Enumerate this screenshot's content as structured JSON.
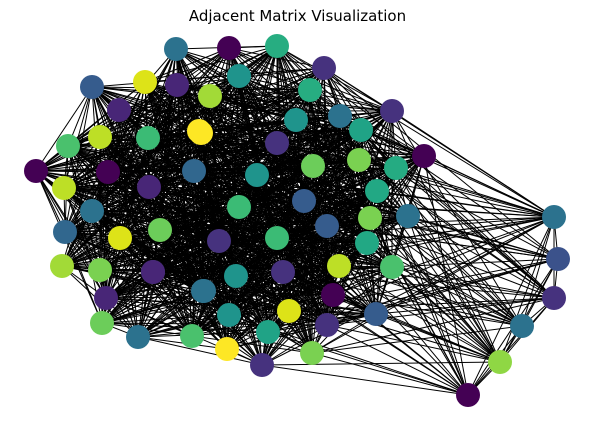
{
  "figure": {
    "title": "Adjacent Matrix Visualization"
  },
  "graph": {
    "edge_color": "#000000",
    "colormap": "viridis",
    "nodes": [
      {
        "color": "#2c728e"
      },
      {
        "color": "#440154"
      },
      {
        "color": "#27ad81"
      },
      {
        "color": "#46327e"
      },
      {
        "color": "#365c8d"
      },
      {
        "color": "#dde318"
      },
      {
        "color": "#482677"
      },
      {
        "color": "#1f948c"
      },
      {
        "color": "#482677"
      },
      {
        "color": "#a2da37"
      },
      {
        "color": "#27ad81"
      },
      {
        "color": "#2c728e"
      },
      {
        "color": "#46327e"
      },
      {
        "color": "#4ac16d"
      },
      {
        "color": "#bddf26"
      },
      {
        "color": "#3bbb75"
      },
      {
        "color": "#fde725"
      },
      {
        "color": "#1f948c"
      },
      {
        "color": "#20a386"
      },
      {
        "color": "#440154"
      },
      {
        "color": "#46327e"
      },
      {
        "color": "#6ccd5a"
      },
      {
        "color": "#7ad151"
      },
      {
        "color": "#31678e"
      },
      {
        "color": "#440154"
      },
      {
        "color": "#440154"
      },
      {
        "color": "#25ab82"
      },
      {
        "color": "#482677"
      },
      {
        "color": "#bddf26"
      },
      {
        "color": "#2c728e"
      },
      {
        "color": "#1f948c"
      },
      {
        "color": "#365c8d"
      },
      {
        "color": "#31678e"
      },
      {
        "color": "#22a884"
      },
      {
        "color": "#3bbb75"
      },
      {
        "color": "#7ad151"
      },
      {
        "color": "#6ccd5a"
      },
      {
        "color": "#2c728e"
      },
      {
        "color": "#dde318"
      },
      {
        "color": "#fde725"
      },
      {
        "color": "#3bbb75"
      },
      {
        "color": "#46327e"
      },
      {
        "color": "#365c8d"
      },
      {
        "color": "#22a884"
      },
      {
        "color": "#a2da37"
      },
      {
        "color": "#2c728e"
      },
      {
        "color": "#482677"
      },
      {
        "color": "#46327e"
      },
      {
        "color": "#4ac16d"
      },
      {
        "color": "#7ad151"
      },
      {
        "color": "#440154"
      },
      {
        "color": "#1f948c"
      },
      {
        "color": "#bddf26"
      },
      {
        "color": "#3b528b"
      },
      {
        "color": "#6ccd5a"
      },
      {
        "color": "#1f948c"
      },
      {
        "color": "#fde725"
      },
      {
        "color": "#482677"
      },
      {
        "color": "#2c728e"
      },
      {
        "color": "#20a386"
      },
      {
        "color": "#dde318"
      },
      {
        "color": "#46327e"
      },
      {
        "color": "#4ac16d"
      },
      {
        "color": "#2c728e"
      },
      {
        "color": "#8fd744"
      },
      {
        "color": "#2c728e"
      },
      {
        "color": "#3b528b"
      },
      {
        "color": "#365c8d"
      },
      {
        "color": "#46327e"
      },
      {
        "color": "#7ad151"
      },
      {
        "color": "#46327e"
      },
      {
        "color": "#440154"
      },
      {
        "color": "#2c728e"
      }
    ]
  }
}
